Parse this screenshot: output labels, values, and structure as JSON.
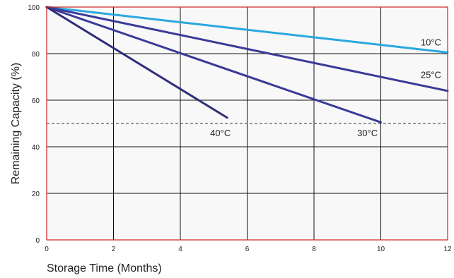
{
  "chart_data": {
    "type": "line",
    "xlabel": "Storage Time (Months)",
    "ylabel": "Remaining Capacity (%)",
    "xlim": [
      0,
      12
    ],
    "ylim": [
      0,
      100
    ],
    "x_ticks": [
      "2",
      "4",
      "6",
      "8",
      "10",
      "12"
    ],
    "x_origin_label": "0",
    "y_ticks": [
      "20",
      "40",
      "60",
      "80",
      "100"
    ],
    "y_origin_label": "0",
    "grid": true,
    "reference_line": {
      "y": 50,
      "style": "dashed"
    },
    "series": [
      {
        "name": "10°C",
        "color": "#29a8df",
        "points": [
          [
            0,
            100
          ],
          [
            12,
            80.5
          ]
        ]
      },
      {
        "name": "25°C",
        "color": "#3a3a98",
        "points": [
          [
            0,
            100
          ],
          [
            12,
            64
          ]
        ]
      },
      {
        "name": "30°C",
        "color": "#3a3a98",
        "points": [
          [
            0,
            100
          ],
          [
            10,
            50.5
          ]
        ]
      },
      {
        "name": "40°C",
        "color": "#2d2d7a",
        "points": [
          [
            0,
            100
          ],
          [
            5.4,
            52.5
          ]
        ]
      }
    ],
    "series_label_pos": {
      "10°C": [
        11.5,
        85
      ],
      "25°C": [
        11.5,
        71
      ],
      "30°C": [
        9.6,
        46
      ],
      "40°C": [
        5.2,
        46
      ]
    },
    "colors": {
      "frame": "#d42020",
      "grid": "#111111"
    }
  }
}
